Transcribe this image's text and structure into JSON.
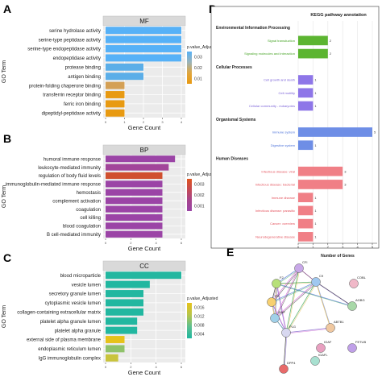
{
  "panels": {
    "A": {
      "letter": "A",
      "facet": "MF",
      "xlabel": "Gene Count",
      "ylabel": "GO Term",
      "legend_title": "p.value_Adjusted",
      "legend_ticks": [
        "0.03",
        "0.02",
        "0.01"
      ],
      "gradient": [
        "#56B1F7",
        "#9BB3B8",
        "#E0A63E",
        "#E89A12"
      ],
      "xticks": [
        "0",
        "1",
        "2",
        "3",
        "4"
      ],
      "xlim": [
        0,
        4
      ],
      "categories": [
        "serine hydrolase activity",
        "serine-type peptidase activity",
        "serine-type endopeptidase activity",
        "endopeptidase activity",
        "protease binding",
        "antigen binding",
        "protein-folding chaperone binding",
        "transferrin receptor binding",
        "ferric iron binding",
        "dipeptidyl-peptidase activity"
      ],
      "values": [
        4,
        4,
        4,
        4,
        2,
        2,
        1,
        1,
        1,
        1
      ],
      "colors": [
        "#56B1F7",
        "#56B1F7",
        "#56B1F7",
        "#56B1F7",
        "#5BAEE8",
        "#5BAEE8",
        "#D4A055",
        "#E89A12",
        "#E89A12",
        "#E89A12"
      ]
    },
    "B": {
      "letter": "B",
      "facet": "BP",
      "xlabel": "Gene Count",
      "ylabel": "GO Term",
      "legend_title": "p.value_Adjusted",
      "legend_ticks": [
        "0.003",
        "0.002",
        "0.001"
      ],
      "gradient": [
        "#E0541E",
        "#C44A55",
        "#A6458E",
        "#9B44A6"
      ],
      "xticks": [
        "0",
        "2",
        "4",
        "6"
      ],
      "xlim": [
        0,
        6
      ],
      "categories": [
        "humoral immune response",
        "leukocyte-mediated immunity",
        "regulation of body fluid levels",
        "immunoglobulin-mediated immune response",
        "hemostasis",
        "complement activation",
        "coagulation",
        "cell killing",
        "blood coagulation",
        "B cell-mediated immunity"
      ],
      "values": [
        5.5,
        5,
        4.5,
        4.5,
        4.5,
        4.5,
        4.5,
        4.5,
        4.5,
        4.5
      ],
      "colors": [
        "#9B44A6",
        "#A2459A",
        "#D0502F",
        "#9B44A6",
        "#9B44A6",
        "#9B44A6",
        "#9B44A6",
        "#9B44A6",
        "#9B44A6",
        "#9B44A6"
      ]
    },
    "C": {
      "letter": "C",
      "facet": "CC",
      "xlabel": "Gene Count",
      "ylabel": "GO Term",
      "legend_title": "p.value_Adjusted",
      "legend_ticks": [
        "0.016",
        "0.012",
        "0.008",
        "0.004"
      ],
      "gradient": [
        "#E6C21A",
        "#B8C54A",
        "#5FC090",
        "#1FB7A0"
      ],
      "xticks": [
        "0",
        "2",
        "4",
        "6"
      ],
      "xlim": [
        0,
        6
      ],
      "categories": [
        "blood microparticle",
        "vesicle lumen",
        "secretory granule lumen",
        "cytoplasmic vesicle lumen",
        "collagen-containing extracellular matrix",
        "platelet alpha granule lumen",
        "platelet alpha granule",
        "external side of plasma membrane",
        "endoplasmic reticulum lumen",
        "IgG immunoglobulin complex"
      ],
      "values": [
        6,
        3.5,
        3,
        3,
        3,
        2.5,
        2.5,
        1.5,
        1.5,
        1
      ],
      "colors": [
        "#22B7A0",
        "#22B7A0",
        "#22B7A0",
        "#22B7A0",
        "#22B7A0",
        "#22B7A0",
        "#22B7A0",
        "#E6C21A",
        "#8FC26A",
        "#C9C43C"
      ]
    },
    "D": {
      "letter": "D",
      "title": "KEGG pathway annotation",
      "xlabel": "Number of Genes",
      "xticks": [
        "0",
        "1",
        "2",
        "3",
        "4",
        "5"
      ],
      "xlim": [
        0,
        5
      ],
      "groups": [
        {
          "name": "Environmental Information Processing",
          "color": "#5CB531",
          "label_color": "#4AA52A",
          "items": [
            {
              "label": "Signal transduction",
              "value": 2
            },
            {
              "label": "Signaling molecules and interaction",
              "value": 2
            }
          ]
        },
        {
          "name": "Cellular Processes",
          "color": "#8E76E8",
          "label_color": "#7B62D8",
          "items": [
            {
              "label": "Cell growth and death",
              "value": 1
            },
            {
              "label": "Cell motility",
              "value": 1
            },
            {
              "label": "Cellular community - eukaryotes",
              "value": 1
            }
          ]
        },
        {
          "name": "Organismal Systems",
          "color": "#6E8EE6",
          "label_color": "#4F74DA",
          "items": [
            {
              "label": "Immune system",
              "value": 5
            },
            {
              "label": "Digestive system",
              "value": 1
            }
          ]
        },
        {
          "name": "Human Diseases",
          "color": "#F07F86",
          "label_color": "#E4545E",
          "items": [
            {
              "label": "Infectious disease: viral",
              "value": 3
            },
            {
              "label": "Infectious disease: bacterial",
              "value": 3
            },
            {
              "label": "Immune disease",
              "value": 1
            },
            {
              "label": "Infectious disease: parasitic",
              "value": 1
            },
            {
              "label": "Cancer: overview",
              "value": 1
            },
            {
              "label": "Neurodegenerative disease",
              "value": 1
            }
          ]
        }
      ]
    },
    "E": {
      "letter": "E",
      "nodes": [
        "CFI",
        "F2",
        "C9",
        "COBL",
        "AGBG",
        "F9",
        "VWF",
        "PLG",
        "ABTB1",
        "IGAF",
        "FETUB",
        "IGAFL",
        "DPP4"
      ],
      "node_colors": [
        "#C8A8E8",
        "#B7E07A",
        "#9FC8F0",
        "#F0B8C8",
        "#A8D8A8",
        "#F7D070",
        "#A0D0E8",
        "#D8D8F0",
        "#F0C8A0",
        "#E8A0C0",
        "#C0A0E8",
        "#A8E0D0",
        "#E86A6A"
      ]
    }
  }
}
